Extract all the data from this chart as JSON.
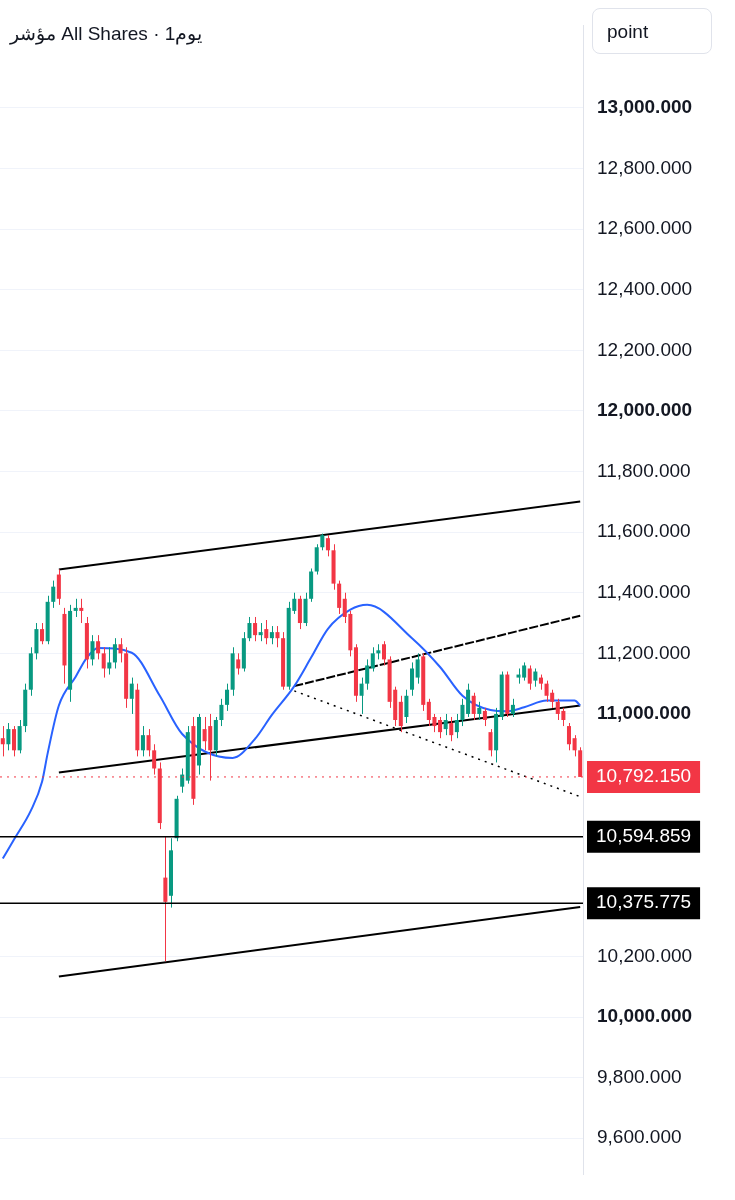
{
  "chart_data": {
    "type": "candlestick",
    "title": "مؤشر All Shares · 1يوم",
    "ylabel": "point",
    "categories": [
      null,
      null,
      null,
      null,
      null,
      null,
      null,
      null,
      null,
      null,
      null,
      null,
      null,
      null,
      null,
      null,
      null,
      null,
      null,
      null,
      null,
      null,
      null,
      null,
      null,
      null,
      null,
      null,
      null,
      null,
      null,
      null,
      null,
      null,
      null,
      null,
      null,
      null,
      null,
      null,
      null,
      null,
      null,
      null,
      null,
      null,
      null,
      null,
      null,
      null,
      null,
      null,
      null,
      null,
      null,
      null,
      null,
      null,
      null,
      null,
      null,
      null,
      null,
      null,
      null,
      null,
      null,
      null,
      null,
      null,
      null,
      null,
      null,
      null,
      null,
      null,
      null,
      null,
      null,
      null,
      null,
      null,
      null,
      null,
      null,
      null,
      null,
      null,
      null,
      null,
      null,
      null,
      null,
      null,
      null,
      null,
      null,
      null,
      null,
      null,
      null,
      null,
      null,
      null
    ],
    "ohlc": [
      [
        10920,
        10960,
        10860,
        10900
      ],
      [
        10900,
        10970,
        10880,
        10950
      ],
      [
        10950,
        10960,
        10860,
        10880
      ],
      [
        10880,
        10980,
        10870,
        10960
      ],
      [
        10960,
        11100,
        10940,
        11080
      ],
      [
        11080,
        11220,
        11060,
        11200
      ],
      [
        11200,
        11300,
        11180,
        11280
      ],
      [
        11280,
        11300,
        11230,
        11240
      ],
      [
        11240,
        11390,
        11230,
        11370
      ],
      [
        11370,
        11440,
        11350,
        11420
      ],
      [
        11460,
        11477,
        11360,
        11380
      ],
      [
        11330,
        11350,
        11100,
        11160
      ],
      [
        11080,
        11360,
        11040,
        11340
      ],
      [
        11340,
        11380,
        11320,
        11350
      ],
      [
        11350,
        11380,
        11300,
        11340
      ],
      [
        11300,
        11320,
        11150,
        11180
      ],
      [
        11180,
        11260,
        11160,
        11240
      ],
      [
        11240,
        11260,
        11180,
        11200
      ],
      [
        11200,
        11220,
        11120,
        11150
      ],
      [
        11150,
        11220,
        11130,
        11170
      ],
      [
        11170,
        11250,
        11150,
        11230
      ],
      [
        11230,
        11250,
        11170,
        11200
      ],
      [
        11200,
        11220,
        11020,
        11050
      ],
      [
        11050,
        11120,
        11000,
        11100
      ],
      [
        11080,
        11100,
        10860,
        10880
      ],
      [
        10880,
        10960,
        10860,
        10930
      ],
      [
        10930,
        10950,
        10860,
        10880
      ],
      [
        10880,
        10900,
        10800,
        10820
      ],
      [
        10820,
        10840,
        10620,
        10640
      ],
      [
        10460,
        10594,
        10184,
        10380
      ],
      [
        10400,
        10590,
        10361,
        10550
      ],
      [
        10590,
        10730,
        10580,
        10720
      ],
      [
        10760,
        10820,
        10740,
        10800
      ],
      [
        10780,
        10960,
        10770,
        10940
      ],
      [
        10960,
        10990,
        10700,
        10720
      ],
      [
        10830,
        11000,
        10800,
        10990
      ],
      [
        10950,
        10990,
        10880,
        10910
      ],
      [
        10960,
        11000,
        10780,
        10880
      ],
      [
        10880,
        10990,
        10860,
        10980
      ],
      [
        10980,
        11050,
        10960,
        11030
      ],
      [
        11030,
        11100,
        11010,
        11080
      ],
      [
        11080,
        11220,
        11060,
        11200
      ],
      [
        11180,
        11200,
        11130,
        11150
      ],
      [
        11150,
        11270,
        11140,
        11250
      ],
      [
        11250,
        11320,
        11240,
        11300
      ],
      [
        11300,
        11320,
        11240,
        11260
      ],
      [
        11260,
        11300,
        11240,
        11270
      ],
      [
        11280,
        11310,
        11230,
        11250
      ],
      [
        11250,
        11290,
        11230,
        11270
      ],
      [
        11270,
        11290,
        11220,
        11250
      ],
      [
        11250,
        11270,
        11080,
        11090
      ],
      [
        11090,
        11370,
        11080,
        11350
      ],
      [
        11340,
        11400,
        11330,
        11380
      ],
      [
        11380,
        11390,
        11280,
        11300
      ],
      [
        11300,
        11400,
        11290,
        11380
      ],
      [
        11380,
        11480,
        11370,
        11470
      ],
      [
        11470,
        11560,
        11460,
        11550
      ],
      [
        11550,
        11595,
        11540,
        11590
      ],
      [
        11580,
        11590,
        11520,
        11540
      ],
      [
        11540,
        11560,
        11410,
        11430
      ],
      [
        11430,
        11440,
        11330,
        11350
      ],
      [
        11380,
        11400,
        11300,
        11320
      ],
      [
        11330,
        11340,
        11190,
        11210
      ],
      [
        11220,
        11230,
        11040,
        11060
      ],
      [
        11060,
        11120,
        11000,
        11100
      ],
      [
        11100,
        11180,
        11080,
        11160
      ],
      [
        11150,
        11220,
        11140,
        11200
      ],
      [
        11200,
        11230,
        11180,
        11210
      ],
      [
        11230,
        11240,
        11160,
        11180
      ],
      [
        11180,
        11190,
        11020,
        11040
      ],
      [
        11080,
        11090,
        10960,
        10980
      ],
      [
        11040,
        11060,
        10940,
        10960
      ],
      [
        10990,
        11080,
        10970,
        11060
      ],
      [
        11080,
        11170,
        11060,
        11150
      ],
      [
        11120,
        11200,
        11100,
        11180
      ],
      [
        11190,
        11200,
        11010,
        11030
      ],
      [
        11040,
        11050,
        10960,
        10980
      ],
      [
        10990,
        11000,
        10940,
        10960
      ],
      [
        10980,
        10990,
        10920,
        10940
      ],
      [
        10950,
        11000,
        10930,
        10980
      ],
      [
        10970,
        10990,
        10910,
        10930
      ],
      [
        10940,
        11000,
        10920,
        10980
      ],
      [
        10980,
        11050,
        10960,
        11030
      ],
      [
        11000,
        11100,
        10990,
        11080
      ],
      [
        11060,
        11070,
        10980,
        11000
      ],
      [
        11000,
        11040,
        10980,
        11020
      ],
      [
        11010,
        11020,
        10960,
        10980
      ],
      [
        10940,
        10950,
        10860,
        10880
      ],
      [
        10880,
        11020,
        10840,
        11000
      ],
      [
        10990,
        11140,
        10980,
        11130
      ],
      [
        11130,
        11140,
        10990,
        11000
      ],
      [
        11000,
        11050,
        10990,
        11030
      ],
      [
        11120,
        11150,
        11100,
        11130
      ],
      [
        11120,
        11170,
        11110,
        11160
      ],
      [
        11150,
        11160,
        11080,
        11100
      ],
      [
        11110,
        11150,
        11090,
        11140
      ],
      [
        11120,
        11130,
        11080,
        11100
      ],
      [
        11100,
        11110,
        11040,
        11060
      ],
      [
        11070,
        11080,
        11020,
        11040
      ],
      [
        11040,
        11050,
        10980,
        11000
      ],
      [
        11010,
        11020,
        10960,
        10980
      ],
      [
        10960,
        10970,
        10880,
        10900
      ],
      [
        10920,
        10930,
        10860,
        10880
      ],
      [
        10880,
        10890,
        10792.15,
        10792.15
      ]
    ],
    "colors": [
      "#f23645",
      "#089981",
      "#f23645",
      "#089981",
      "#089981",
      "#089981",
      "#089981",
      "#f23645",
      "#089981",
      "#089981",
      "#f23645",
      "#f23645",
      "#089981",
      "#089981",
      "#f23645",
      "#f23645",
      "#089981",
      "#f23645",
      "#f23645",
      "#089981",
      "#089981",
      "#f23645",
      "#f23645",
      "#089981",
      "#f23645",
      "#089981",
      "#f23645",
      "#f23645",
      "#f23645",
      "#f23645",
      "#089981",
      "#089981",
      "#089981",
      "#089981",
      "#f23645",
      "#089981",
      "#f23645",
      "#f23645",
      "#089981",
      "#089981",
      "#089981",
      "#089981",
      "#f23645",
      "#089981",
      "#089981",
      "#f23645",
      "#089981",
      "#f23645",
      "#089981",
      "#f23645",
      "#f23645",
      "#089981",
      "#089981",
      "#f23645",
      "#089981",
      "#089981",
      "#089981",
      "#089981",
      "#f23645",
      "#f23645",
      "#f23645",
      "#f23645",
      "#f23645",
      "#f23645",
      "#089981",
      "#089981",
      "#089981",
      "#089981",
      "#f23645",
      "#f23645",
      "#f23645",
      "#f23645",
      "#089981",
      "#089981",
      "#089981",
      "#f23645",
      "#f23645",
      "#f23645",
      "#f23645",
      "#089981",
      "#f23645",
      "#089981",
      "#089981",
      "#089981",
      "#f23645",
      "#089981",
      "#f23645",
      "#f23645",
      "#089981",
      "#089981",
      "#f23645",
      "#089981",
      "#089981",
      "#089981",
      "#f23645",
      "#089981",
      "#f23645",
      "#f23645",
      "#f23645",
      "#f23645",
      "#f23645",
      "#f23645",
      "#f23645",
      "#f23645"
    ],
    "series": [
      {
        "type": "line",
        "color": "#2962ff",
        "line_style": "solid",
        "values": [
          10523,
          null,
          10586,
          null,
          null,
          10681,
          null,
          10776,
          10870,
          null,
          11028,
          null,
          null,
          11123,
          null,
          11186,
          null,
          11218,
          null,
          null,
          null,
          null,
          null,
          11202,
          null,
          null,
          null,
          null,
          11060,
          null,
          null,
          null,
          10934,
          null,
          null,
          null,
          null,
          null,
          null,
          null,
          null,
          10855,
          null,
          null,
          null,
          10918,
          null,
          null,
          10997,
          null,
          null,
          null,
          11092,
          null,
          null,
          11186,
          null,
          null,
          11281,
          null,
          null,
          null,
          11344,
          null,
          null,
          11360,
          null,
          null,
          null,
          null,
          null,
          null,
          null,
          11250,
          null,
          null,
          null,
          null,
          11155,
          null,
          null,
          null,
          11060,
          null,
          null,
          null,
          null,
          11013,
          null,
          null,
          11009,
          null,
          null,
          11022,
          null,
          null,
          null,
          11044,
          null,
          null,
          null,
          null,
          11044,
          11028
        ]
      },
      {
        "type": "line",
        "color": "#000000",
        "line_style": "solid",
        "values": [
          null,
          null,
          null,
          null,
          null,
          null,
          null,
          null,
          null,
          null,
          11477,
          null,
          null,
          null,
          null,
          null,
          null,
          null,
          null,
          null,
          null,
          null,
          null,
          null,
          null,
          null,
          null,
          null,
          null,
          null,
          null,
          null,
          null,
          null,
          null,
          null,
          null,
          null,
          null,
          null,
          null,
          null,
          null,
          null,
          null,
          null,
          null,
          null,
          null,
          null,
          null,
          null,
          null,
          null,
          null,
          null,
          null,
          null,
          null,
          null,
          null,
          null,
          null,
          null,
          null,
          null,
          null,
          null,
          null,
          null,
          null,
          null,
          null,
          null,
          null,
          null,
          null,
          null,
          null,
          null,
          null,
          null,
          null,
          null,
          null,
          null,
          null,
          null,
          null,
          null,
          null,
          null,
          null,
          null,
          null,
          null,
          null,
          null,
          null,
          null,
          null,
          null,
          null,
          11701
        ]
      },
      {
        "type": "line",
        "color": "#000000",
        "line_style": "solid",
        "values": [
          null,
          null,
          null,
          null,
          null,
          null,
          null,
          null,
          null,
          null,
          10807,
          null,
          null,
          null,
          null,
          null,
          null,
          null,
          null,
          null,
          null,
          null,
          null,
          null,
          null,
          null,
          null,
          null,
          null,
          null,
          null,
          null,
          null,
          null,
          null,
          null,
          null,
          null,
          null,
          null,
          null,
          null,
          null,
          null,
          null,
          null,
          null,
          null,
          null,
          null,
          null,
          null,
          null,
          null,
          null,
          null,
          null,
          null,
          null,
          null,
          null,
          null,
          null,
          null,
          null,
          null,
          null,
          null,
          null,
          null,
          null,
          null,
          null,
          null,
          null,
          null,
          null,
          null,
          null,
          null,
          null,
          null,
          null,
          null,
          null,
          null,
          null,
          null,
          null,
          null,
          null,
          null,
          null,
          null,
          null,
          null,
          null,
          null,
          null,
          null,
          null,
          null,
          null,
          11028
        ]
      },
      {
        "type": "line",
        "color": "#000000",
        "line_style": "solid",
        "values": [
          null,
          null,
          null,
          null,
          null,
          null,
          null,
          null,
          null,
          null,
          10134,
          null,
          null,
          null,
          null,
          null,
          null,
          null,
          null,
          null,
          null,
          null,
          null,
          null,
          null,
          null,
          null,
          null,
          null,
          null,
          null,
          null,
          null,
          null,
          null,
          null,
          null,
          null,
          null,
          null,
          null,
          null,
          null,
          null,
          null,
          null,
          null,
          null,
          null,
          null,
          null,
          null,
          null,
          null,
          null,
          null,
          null,
          null,
          null,
          null,
          null,
          null,
          null,
          null,
          null,
          null,
          null,
          null,
          null,
          null,
          null,
          null,
          null,
          null,
          null,
          null,
          null,
          null,
          null,
          null,
          null,
          null,
          null,
          null,
          null,
          null,
          null,
          null,
          null,
          null,
          null,
          null,
          null,
          null,
          null,
          null,
          null,
          null,
          null,
          null,
          null,
          null,
          null,
          10363
        ]
      },
      {
        "type": "line",
        "color": "#000000",
        "line_style": "dashed",
        "values": [
          null,
          null,
          null,
          null,
          null,
          null,
          null,
          null,
          null,
          null,
          null,
          null,
          null,
          null,
          null,
          null,
          null,
          null,
          null,
          null,
          null,
          null,
          null,
          null,
          null,
          null,
          null,
          null,
          null,
          null,
          null,
          null,
          null,
          null,
          null,
          null,
          null,
          null,
          null,
          null,
          null,
          null,
          null,
          null,
          null,
          null,
          null,
          null,
          null,
          null,
          null,
          null,
          11092,
          null,
          null,
          null,
          null,
          null,
          null,
          null,
          null,
          null,
          null,
          null,
          null,
          null,
          null,
          null,
          null,
          null,
          null,
          null,
          null,
          null,
          null,
          null,
          null,
          null,
          null,
          null,
          null,
          null,
          null,
          null,
          null,
          null,
          null,
          null,
          null,
          null,
          null,
          null,
          null,
          null,
          null,
          null,
          null,
          null,
          null,
          null,
          null,
          null,
          null,
          11324
        ]
      },
      {
        "type": "line",
        "color": "#000000",
        "line_style": "dotted",
        "values": [
          null,
          null,
          null,
          null,
          null,
          null,
          null,
          null,
          null,
          null,
          null,
          null,
          null,
          null,
          null,
          null,
          null,
          null,
          null,
          null,
          null,
          null,
          null,
          null,
          null,
          null,
          null,
          null,
          null,
          null,
          null,
          null,
          null,
          null,
          null,
          null,
          null,
          null,
          null,
          null,
          null,
          null,
          null,
          null,
          null,
          null,
          null,
          null,
          null,
          null,
          null,
          null,
          11076,
          null,
          null,
          null,
          null,
          null,
          null,
          null,
          null,
          null,
          null,
          null,
          null,
          null,
          null,
          null,
          null,
          null,
          null,
          null,
          null,
          null,
          null,
          null,
          null,
          null,
          null,
          null,
          null,
          null,
          null,
          null,
          null,
          null,
          null,
          null,
          null,
          null,
          null,
          null,
          null,
          null,
          null,
          null,
          null,
          null,
          null,
          null,
          null,
          null,
          null,
          10727
        ]
      }
    ],
    "ref_lines": [
      {
        "axis": "y",
        "value": 10792.15,
        "label": "10,792.150",
        "color": "#f23645",
        "line_style": "dotted"
      },
      {
        "axis": "y",
        "value": 10594.859,
        "label": "10,594.859",
        "color": "#000000",
        "line_style": "solid"
      },
      {
        "axis": "y",
        "value": 10375.775,
        "label": "10,375.775",
        "color": "#000000",
        "line_style": "solid"
      }
    ],
    "ylim": [
      9480,
      13272
    ],
    "yticks": [
      {
        "value": 9600,
        "label": "9,600.000"
      },
      {
        "value": 9800,
        "label": "9,800.000"
      },
      {
        "value": 10000,
        "label": "10,000.000"
      },
      {
        "value": 10200,
        "label": "10,200.000"
      },
      {
        "value": 11000,
        "label": "11,000.000"
      },
      {
        "value": 11200,
        "label": "11,200.000"
      },
      {
        "value": 11400,
        "label": "11,400.000"
      },
      {
        "value": 11600,
        "label": "11,600.000"
      },
      {
        "value": 11800,
        "label": "11,800.000"
      },
      {
        "value": 12000,
        "label": "12,000.000"
      },
      {
        "value": 12200,
        "label": "12,200.000"
      },
      {
        "value": 12400,
        "label": "12,400.000"
      },
      {
        "value": 12600,
        "label": "12,600.000"
      },
      {
        "value": 12800,
        "label": "12,800.000"
      },
      {
        "value": 13000,
        "label": "13,000.000"
      }
    ],
    "grid": "y",
    "legend": false,
    "marker": "none",
    "tick_labels": "y"
  }
}
